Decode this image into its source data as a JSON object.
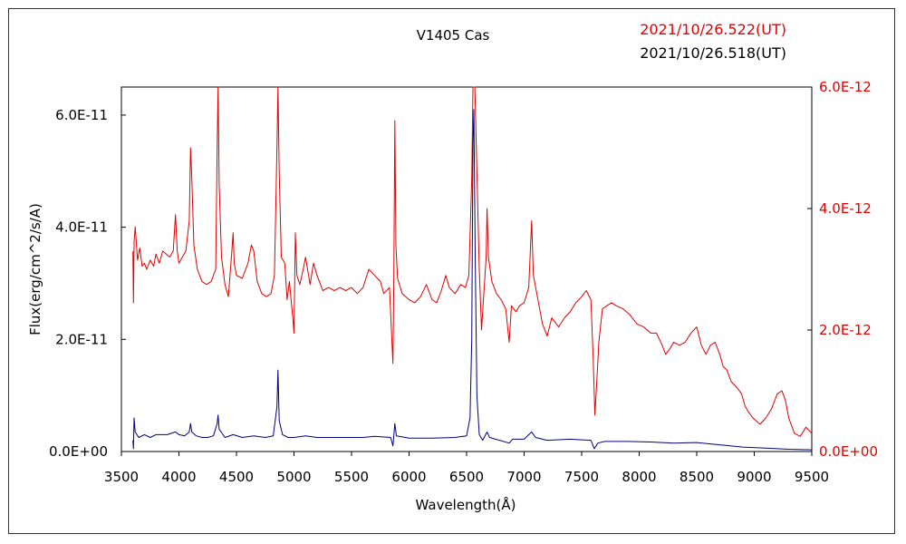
{
  "chart_data": {
    "type": "line",
    "title": "V1405 Cas",
    "xlabel": "Wavelength(Å)",
    "ylabel": "Flux(erg/cm^2/s/A)",
    "xlim": [
      3500,
      9500
    ],
    "ylim_left": [
      0,
      6.5e-11
    ],
    "ylim_right": [
      0,
      6e-12
    ],
    "grid": false,
    "x_ticks": [
      3500,
      4000,
      4500,
      5000,
      5500,
      6000,
      6500,
      7000,
      7500,
      8000,
      8500,
      9000,
      9500
    ],
    "x_tick_labels": [
      "3500",
      "4000",
      "4500",
      "5000",
      "5500",
      "6000",
      "6500",
      "7000",
      "7500",
      "8000",
      "8500",
      "9000",
      "9500"
    ],
    "y_left_ticks": [
      0,
      2e-11,
      4e-11,
      6e-11
    ],
    "y_left_tick_labels": [
      "0.0E+00",
      "2.0E-11",
      "4.0E-11",
      "6.0E-11"
    ],
    "y_right_ticks": [
      0,
      2e-12,
      4e-12,
      6e-12
    ],
    "y_right_tick_labels": [
      "0.0E+00",
      "2.0E-12",
      "4.0E-12",
      "6.0E-12"
    ],
    "legend_texts": {
      "red": "2021/10/26.522(UT)",
      "blue": "2021/10/26.518(UT)"
    },
    "series": [
      {
        "axis": "right",
        "color": "#e00000",
        "points": [
          [
            3600,
            3.3e-12
          ],
          [
            3605,
            2.45e-12
          ],
          [
            3610,
            3.45e-12
          ],
          [
            3620,
            3.7e-12
          ],
          [
            3640,
            3.15e-12
          ],
          [
            3660,
            3.35e-12
          ],
          [
            3680,
            3.05e-12
          ],
          [
            3700,
            3.1e-12
          ],
          [
            3720,
            3e-12
          ],
          [
            3750,
            3.15e-12
          ],
          [
            3780,
            3.05e-12
          ],
          [
            3800,
            3.25e-12
          ],
          [
            3830,
            3.1e-12
          ],
          [
            3860,
            3.3e-12
          ],
          [
            3890,
            3.25e-12
          ],
          [
            3920,
            3.2e-12
          ],
          [
            3950,
            3.3e-12
          ],
          [
            3970,
            3.9e-12
          ],
          [
            3985,
            3.3e-12
          ],
          [
            4000,
            3.1e-12
          ],
          [
            4030,
            3.2e-12
          ],
          [
            4060,
            3.3e-12
          ],
          [
            4090,
            3.8e-12
          ],
          [
            4101,
            5e-12
          ],
          [
            4112,
            4.5e-12
          ],
          [
            4130,
            3.4e-12
          ],
          [
            4160,
            3e-12
          ],
          [
            4200,
            2.8e-12
          ],
          [
            4240,
            2.75e-12
          ],
          [
            4280,
            2.8e-12
          ],
          [
            4320,
            3e-12
          ],
          [
            4332,
            5e-12
          ],
          [
            4340,
            6e-12
          ],
          [
            4350,
            4.4e-12
          ],
          [
            4370,
            3.2e-12
          ],
          [
            4400,
            2.75e-12
          ],
          [
            4430,
            2.55e-12
          ],
          [
            4460,
            3.3e-12
          ],
          [
            4471,
            3.6e-12
          ],
          [
            4480,
            3.1e-12
          ],
          [
            4500,
            2.9e-12
          ],
          [
            4550,
            2.85e-12
          ],
          [
            4600,
            3.1e-12
          ],
          [
            4630,
            3.4e-12
          ],
          [
            4650,
            3.3e-12
          ],
          [
            4680,
            2.8e-12
          ],
          [
            4720,
            2.6e-12
          ],
          [
            4760,
            2.55e-12
          ],
          [
            4800,
            2.6e-12
          ],
          [
            4830,
            2.9e-12
          ],
          [
            4852,
            5e-12
          ],
          [
            4861,
            6e-12
          ],
          [
            4872,
            4.6e-12
          ],
          [
            4890,
            3.2e-12
          ],
          [
            4920,
            3.1e-12
          ],
          [
            4940,
            2.5e-12
          ],
          [
            4960,
            2.8e-12
          ],
          [
            4990,
            2.2e-12
          ],
          [
            5000,
            1.95e-12
          ],
          [
            5012,
            3.6e-12
          ],
          [
            5025,
            2.9e-12
          ],
          [
            5050,
            2.75e-12
          ],
          [
            5080,
            3e-12
          ],
          [
            5100,
            3.2e-12
          ],
          [
            5140,
            2.75e-12
          ],
          [
            5169,
            3.1e-12
          ],
          [
            5200,
            2.9e-12
          ],
          [
            5250,
            2.65e-12
          ],
          [
            5300,
            2.7e-12
          ],
          [
            5350,
            2.65e-12
          ],
          [
            5400,
            2.7e-12
          ],
          [
            5450,
            2.65e-12
          ],
          [
            5500,
            2.7e-12
          ],
          [
            5550,
            2.6e-12
          ],
          [
            5600,
            2.7e-12
          ],
          [
            5650,
            3e-12
          ],
          [
            5700,
            2.9e-12
          ],
          [
            5750,
            2.8e-12
          ],
          [
            5780,
            2.6e-12
          ],
          [
            5830,
            2.7e-12
          ],
          [
            5860,
            1.45e-12
          ],
          [
            5868,
            2.9e-12
          ],
          [
            5876,
            5.45e-12
          ],
          [
            5886,
            3.4e-12
          ],
          [
            5900,
            2.85e-12
          ],
          [
            5940,
            2.6e-12
          ],
          [
            6000,
            2.5e-12
          ],
          [
            6050,
            2.45e-12
          ],
          [
            6100,
            2.55e-12
          ],
          [
            6150,
            2.75e-12
          ],
          [
            6200,
            2.5e-12
          ],
          [
            6240,
            2.45e-12
          ],
          [
            6280,
            2.65e-12
          ],
          [
            6320,
            2.9e-12
          ],
          [
            6350,
            2.7e-12
          ],
          [
            6400,
            2.6e-12
          ],
          [
            6450,
            2.75e-12
          ],
          [
            6490,
            2.7e-12
          ],
          [
            6520,
            2.9e-12
          ],
          [
            6545,
            4.5e-12
          ],
          [
            6555,
            6e-12
          ],
          [
            6572,
            6e-12
          ],
          [
            6590,
            4.6e-12
          ],
          [
            6610,
            3e-12
          ],
          [
            6630,
            2e-12
          ],
          [
            6650,
            2.6e-12
          ],
          [
            6670,
            3.2e-12
          ],
          [
            6678,
            4e-12
          ],
          [
            6690,
            3.2e-12
          ],
          [
            6720,
            2.8e-12
          ],
          [
            6760,
            2.6e-12
          ],
          [
            6800,
            2.5e-12
          ],
          [
            6840,
            2.35e-12
          ],
          [
            6870,
            1.8e-12
          ],
          [
            6890,
            2.4e-12
          ],
          [
            6930,
            2.3e-12
          ],
          [
            6960,
            2.4e-12
          ],
          [
            7000,
            2.45e-12
          ],
          [
            7040,
            2.7e-12
          ],
          [
            7065,
            3.8e-12
          ],
          [
            7080,
            2.9e-12
          ],
          [
            7110,
            2.6e-12
          ],
          [
            7160,
            2.1e-12
          ],
          [
            7200,
            1.9e-12
          ],
          [
            7240,
            2.2e-12
          ],
          [
            7300,
            2.05e-12
          ],
          [
            7350,
            2.2e-12
          ],
          [
            7400,
            2.3e-12
          ],
          [
            7450,
            2.45e-12
          ],
          [
            7500,
            2.55e-12
          ],
          [
            7540,
            2.65e-12
          ],
          [
            7580,
            2.5e-12
          ],
          [
            7600,
            1.55e-12
          ],
          [
            7615,
            6e-13
          ],
          [
            7630,
            1.1e-12
          ],
          [
            7650,
            1.8e-12
          ],
          [
            7680,
            2.35e-12
          ],
          [
            7720,
            2.4e-12
          ],
          [
            7760,
            2.45e-12
          ],
          [
            7800,
            2.4e-12
          ],
          [
            7860,
            2.35e-12
          ],
          [
            7920,
            2.25e-12
          ],
          [
            7980,
            2.1e-12
          ],
          [
            8040,
            2.05e-12
          ],
          [
            8100,
            1.95e-12
          ],
          [
            8150,
            1.95e-12
          ],
          [
            8200,
            1.75e-12
          ],
          [
            8230,
            1.6e-12
          ],
          [
            8270,
            1.7e-12
          ],
          [
            8300,
            1.8e-12
          ],
          [
            8350,
            1.75e-12
          ],
          [
            8400,
            1.8e-12
          ],
          [
            8450,
            1.95e-12
          ],
          [
            8500,
            2.05e-12
          ],
          [
            8540,
            1.75e-12
          ],
          [
            8580,
            1.6e-12
          ],
          [
            8620,
            1.75e-12
          ],
          [
            8660,
            1.8e-12
          ],
          [
            8700,
            1.6e-12
          ],
          [
            8730,
            1.4e-12
          ],
          [
            8760,
            1.35e-12
          ],
          [
            8800,
            1.15e-12
          ],
          [
            8850,
            1.05e-12
          ],
          [
            8890,
            9.5e-13
          ],
          [
            8920,
            7.5e-13
          ],
          [
            8950,
            6.5e-13
          ],
          [
            8990,
            5.5e-13
          ],
          [
            9050,
            4.5e-13
          ],
          [
            9100,
            5.5e-13
          ],
          [
            9150,
            7e-13
          ],
          [
            9200,
            9.5e-13
          ],
          [
            9240,
            1e-12
          ],
          [
            9270,
            8.5e-13
          ],
          [
            9300,
            5.5e-13
          ],
          [
            9350,
            3e-13
          ],
          [
            9400,
            2.5e-13
          ],
          [
            9450,
            4e-13
          ],
          [
            9500,
            3e-13
          ]
        ]
      },
      {
        "axis": "left",
        "color": "#000080",
        "points": [
          [
            3600,
            2e-12
          ],
          [
            3605,
            5e-13
          ],
          [
            3610,
            6e-12
          ],
          [
            3620,
            3.5e-12
          ],
          [
            3650,
            2.5e-12
          ],
          [
            3700,
            3e-12
          ],
          [
            3750,
            2.5e-12
          ],
          [
            3800,
            3e-12
          ],
          [
            3850,
            3e-12
          ],
          [
            3900,
            3e-12
          ],
          [
            3970,
            3.5e-12
          ],
          [
            4000,
            3e-12
          ],
          [
            4050,
            2.8e-12
          ],
          [
            4090,
            3.5e-12
          ],
          [
            4101,
            5e-12
          ],
          [
            4112,
            3.5e-12
          ],
          [
            4150,
            2.8e-12
          ],
          [
            4200,
            2.5e-12
          ],
          [
            4250,
            2.5e-12
          ],
          [
            4300,
            2.8e-12
          ],
          [
            4332,
            5e-12
          ],
          [
            4340,
            6.5e-12
          ],
          [
            4350,
            4e-12
          ],
          [
            4400,
            2.5e-12
          ],
          [
            4471,
            3e-12
          ],
          [
            4550,
            2.5e-12
          ],
          [
            4650,
            2.8e-12
          ],
          [
            4750,
            2.5e-12
          ],
          [
            4820,
            2.8e-12
          ],
          [
            4852,
            8e-12
          ],
          [
            4861,
            1.45e-11
          ],
          [
            4872,
            5.5e-12
          ],
          [
            4900,
            3e-12
          ],
          [
            4950,
            2.5e-12
          ],
          [
            5000,
            2.5e-12
          ],
          [
            5100,
            2.8e-12
          ],
          [
            5200,
            2.5e-12
          ],
          [
            5400,
            2.5e-12
          ],
          [
            5600,
            2.5e-12
          ],
          [
            5700,
            2.7e-12
          ],
          [
            5840,
            2.5e-12
          ],
          [
            5860,
            1e-12
          ],
          [
            5876,
            5e-12
          ],
          [
            5890,
            2.8e-12
          ],
          [
            6000,
            2.4e-12
          ],
          [
            6200,
            2.4e-12
          ],
          [
            6400,
            2.5e-12
          ],
          [
            6500,
            2.8e-12
          ],
          [
            6530,
            6e-12
          ],
          [
            6545,
            2e-11
          ],
          [
            6555,
            5.5e-11
          ],
          [
            6563,
            6.1e-11
          ],
          [
            6575,
            3.5e-11
          ],
          [
            6590,
            1e-11
          ],
          [
            6610,
            3e-12
          ],
          [
            6640,
            2e-12
          ],
          [
            6678,
            3.5e-12
          ],
          [
            6700,
            2.5e-12
          ],
          [
            6870,
            1.5e-12
          ],
          [
            6900,
            2.2e-12
          ],
          [
            7000,
            2.2e-12
          ],
          [
            7065,
            3.5e-12
          ],
          [
            7100,
            2.5e-12
          ],
          [
            7200,
            2e-12
          ],
          [
            7400,
            2.2e-12
          ],
          [
            7580,
            2e-12
          ],
          [
            7610,
            5e-13
          ],
          [
            7640,
            1.5e-12
          ],
          [
            7700,
            1.8e-12
          ],
          [
            7900,
            1.8e-12
          ],
          [
            8100,
            1.7e-12
          ],
          [
            8300,
            1.5e-12
          ],
          [
            8500,
            1.6e-12
          ],
          [
            8700,
            1.2e-12
          ],
          [
            8900,
            8e-13
          ],
          [
            9100,
            6e-13
          ],
          [
            9300,
            4e-13
          ],
          [
            9500,
            3e-13
          ]
        ]
      }
    ]
  }
}
